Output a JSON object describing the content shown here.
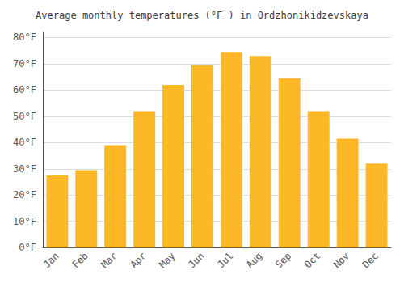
{
  "chart_data": {
    "type": "bar",
    "title": "Average monthly temperatures (°F ) in Ordzhonikidzevskaya",
    "categories": [
      "Jan",
      "Feb",
      "Mar",
      "Apr",
      "May",
      "Jun",
      "Jul",
      "Aug",
      "Sep",
      "Oct",
      "Nov",
      "Dec"
    ],
    "values": [
      27.5,
      29.5,
      39,
      52,
      62,
      69.5,
      74.5,
      73,
      64.5,
      52,
      41.5,
      32
    ],
    "color": "#FDB827",
    "ylim": [
      0,
      82
    ],
    "yticks": [
      {
        "value": 0,
        "label": "0°F"
      },
      {
        "value": 10,
        "label": "10°F"
      },
      {
        "value": 20,
        "label": "20°F"
      },
      {
        "value": 30,
        "label": "30°F"
      },
      {
        "value": 40,
        "label": "40°F"
      },
      {
        "value": 50,
        "label": "50°F"
      },
      {
        "value": 60,
        "label": "60°F"
      },
      {
        "value": 70,
        "label": "70°F"
      },
      {
        "value": 80,
        "label": "80°F"
      }
    ],
    "grid": true
  }
}
